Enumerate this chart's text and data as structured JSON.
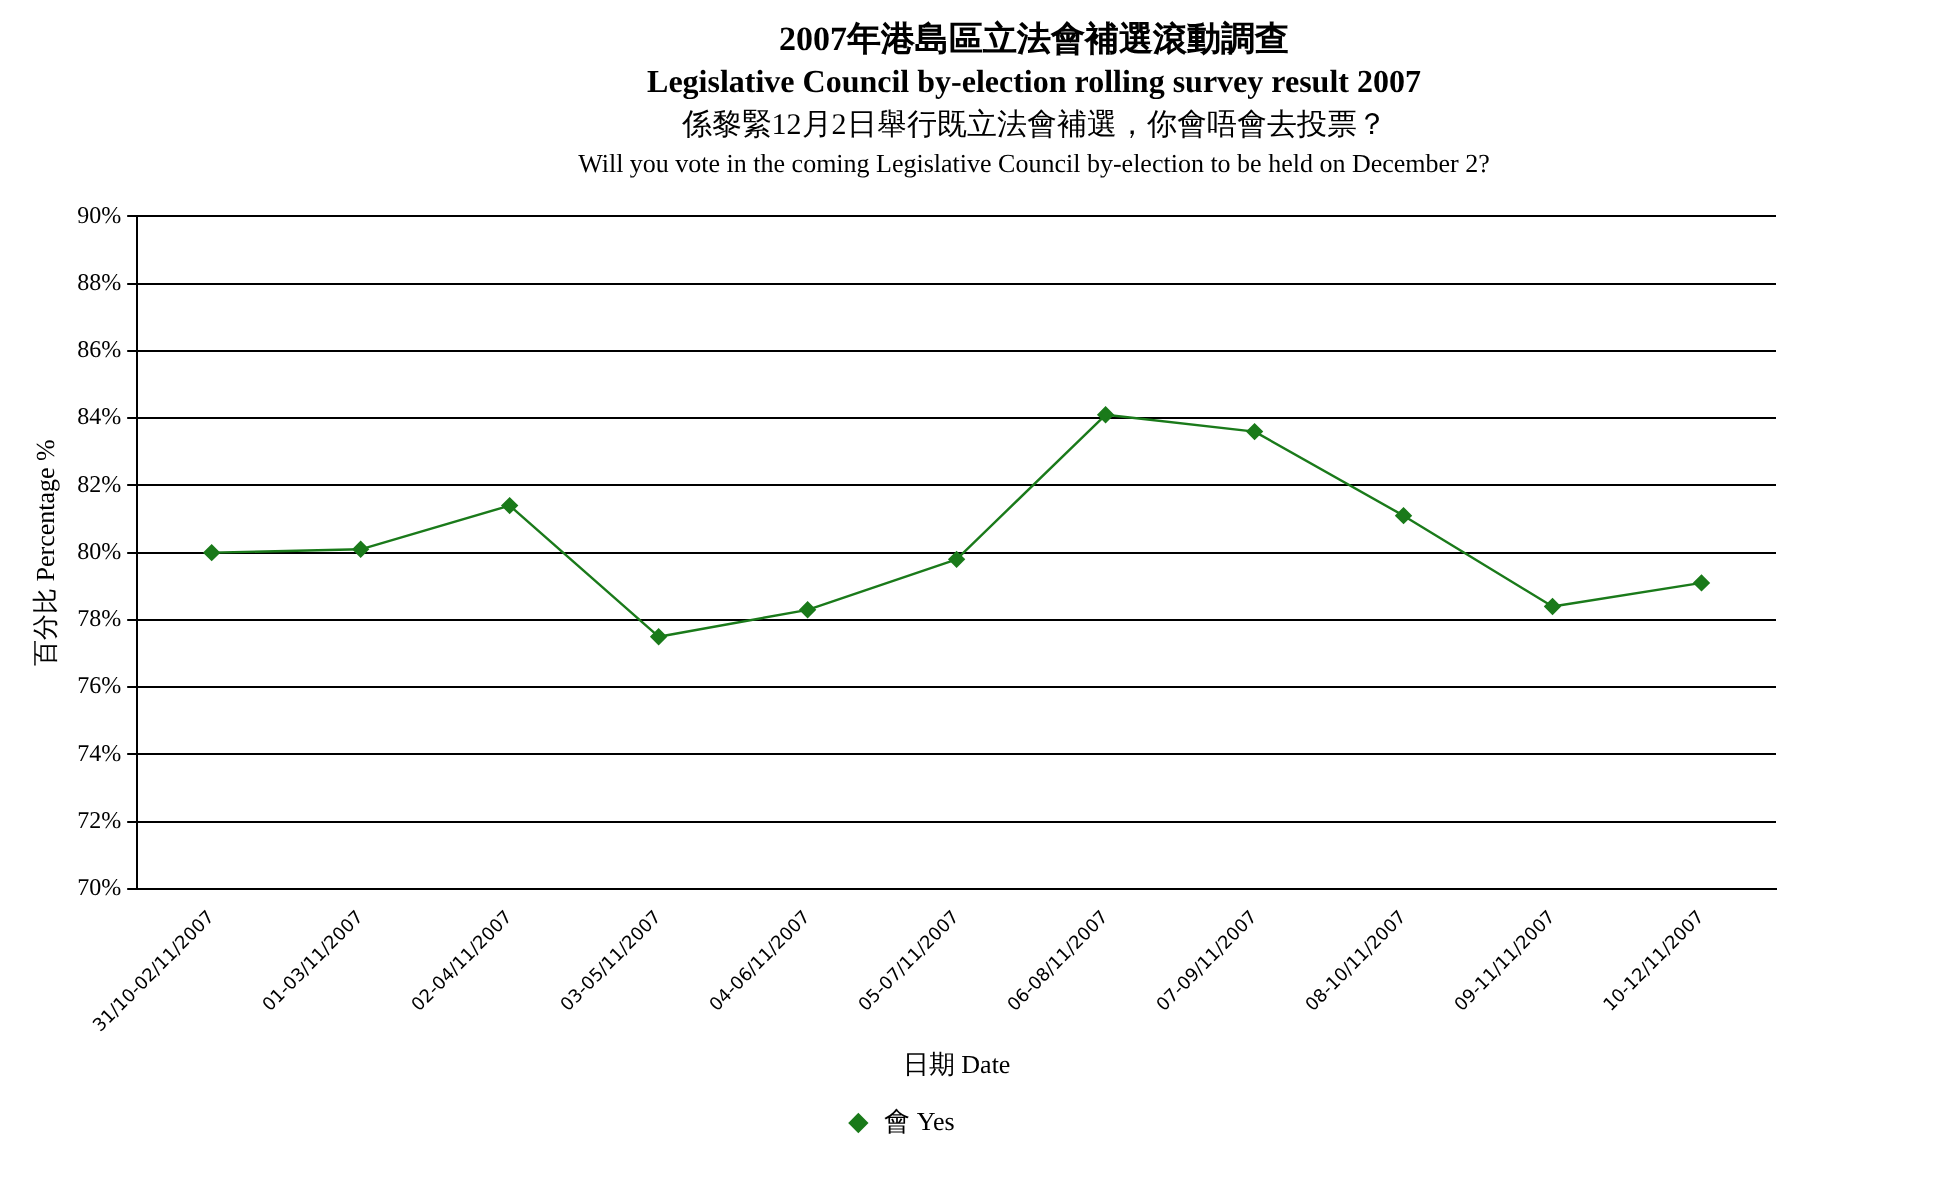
{
  "chart_data": {
    "type": "line",
    "title": "2007年港島區立法會補選滾動調查",
    "subtitle": "Legislative Council by-election rolling survey result 2007",
    "annotations": [
      "係黎緊12月2日舉行既立法會補選，你會唔會去投票？",
      "Will you vote in the coming Legislative Council by-election to be held on December 2?"
    ],
    "xlabel": "日期 Date",
    "ylabel": "百分比 Percentage %",
    "categories": [
      "31/10-02/11/2007",
      "01-03/11/2007",
      "02-04/11/2007",
      "03-05/11/2007",
      "04-06/11/2007",
      "05-07/11/2007",
      "06-08/11/2007",
      "07-09/11/2007",
      "08-10/11/2007",
      "09-11/11/2007",
      "10-12/11/2007"
    ],
    "series": [
      {
        "name": "會 Yes",
        "color": "#1a7a1a",
        "values": [
          80.0,
          80.1,
          81.4,
          77.5,
          78.3,
          79.8,
          84.1,
          83.6,
          81.1,
          78.4,
          79.1
        ]
      }
    ],
    "ylim": [
      70,
      90
    ],
    "yticks": [
      {
        "value": 70,
        "label": "70%"
      },
      {
        "value": 72,
        "label": "72%"
      },
      {
        "value": 74,
        "label": "74%"
      },
      {
        "value": 76,
        "label": "76%"
      },
      {
        "value": 78,
        "label": "78%"
      },
      {
        "value": 80,
        "label": "80%"
      },
      {
        "value": 82,
        "label": "82%"
      },
      {
        "value": 84,
        "label": "84%"
      },
      {
        "value": 86,
        "label": "86%"
      },
      {
        "value": 88,
        "label": "88%"
      },
      {
        "value": 90,
        "label": "90%"
      }
    ],
    "grid": "y",
    "legend": "bottom",
    "marker": "diamond",
    "line_style": "solid"
  }
}
